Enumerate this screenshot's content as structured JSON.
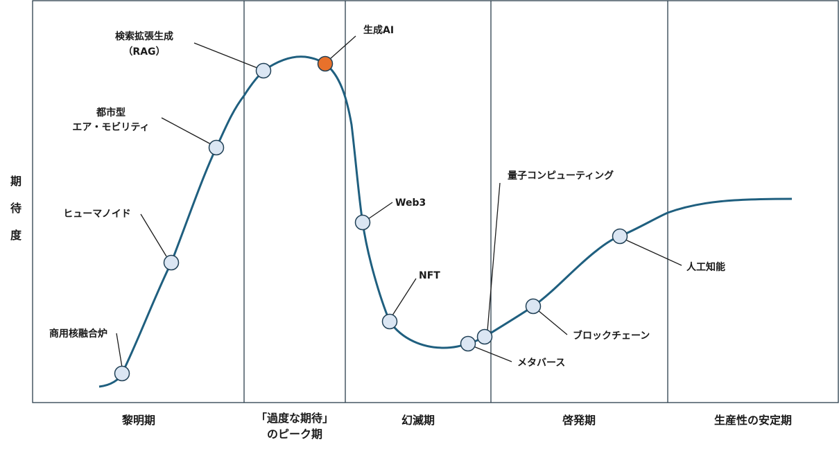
{
  "axis_label": [
    "期",
    "待",
    "度"
  ],
  "phases": [
    {
      "lines": [
        "黎明期"
      ]
    },
    {
      "lines": [
        "「過度な期待」",
        "のピーク期"
      ]
    },
    {
      "lines": [
        "幻滅期"
      ]
    },
    {
      "lines": [
        "啓発期"
      ]
    },
    {
      "lines": [
        "生産性の安定期"
      ]
    }
  ],
  "technologies": [
    {
      "id": "fusion",
      "lines": [
        "商用核融合炉"
      ]
    },
    {
      "id": "humanoid",
      "lines": [
        "ヒューマノイド"
      ]
    },
    {
      "id": "air-mobility",
      "lines": [
        "都市型",
        "エア・モビリティ"
      ]
    },
    {
      "id": "rag",
      "lines": [
        "検索拡張生成",
        "（RAG）"
      ]
    },
    {
      "id": "genai",
      "lines": [
        "生成AI"
      ]
    },
    {
      "id": "web3",
      "lines": [
        "Web3"
      ]
    },
    {
      "id": "nft",
      "lines": [
        "NFT"
      ]
    },
    {
      "id": "metaverse",
      "lines": [
        "メタバース"
      ]
    },
    {
      "id": "quantum",
      "lines": [
        "量子コンピューティング"
      ]
    },
    {
      "id": "blockchain",
      "lines": [
        "ブロックチェーン"
      ]
    },
    {
      "id": "ai",
      "lines": [
        "人工知能"
      ]
    }
  ],
  "colors": {
    "curve": "#1f5f7f",
    "point_default": "#dbe6f3",
    "point_highlight": "#e8712b",
    "frame": "#2a3d4a"
  },
  "highlighted": "genai"
}
